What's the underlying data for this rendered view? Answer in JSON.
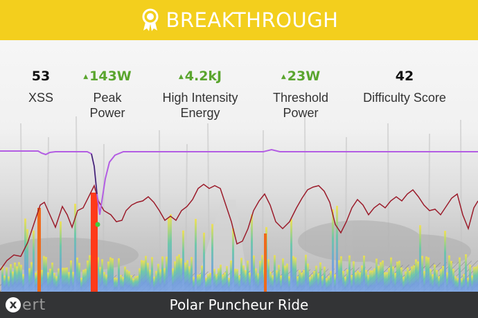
{
  "banner": {
    "title": "BREAKTHROUGH",
    "icon": "medal-icon",
    "background": "#f3cf1d"
  },
  "stats": [
    {
      "value": "53",
      "label_line1": "XSS",
      "label_line2": "",
      "trend": "none"
    },
    {
      "value": "143W",
      "label_line1": "Peak",
      "label_line2": "Power",
      "trend": "up"
    },
    {
      "value": "4.2kJ",
      "label_line1": "High Intensity",
      "label_line2": "Energy",
      "trend": "up"
    },
    {
      "value": "23W",
      "label_line1": "Threshold",
      "label_line2": "Power",
      "trend": "up"
    },
    {
      "value": "42",
      "label_line1": "Difficulty Score",
      "label_line2": "",
      "trend": "none"
    }
  ],
  "colors": {
    "trend_up": "#5aa52e",
    "hr_line": "#9b1b2a",
    "mpa_line": "#b35de3",
    "breakthrough_bar": "#ff3a1a"
  },
  "footer": {
    "logo_mark": "x",
    "logo_text": "ert",
    "ride_title": "Polar Puncheur Ride"
  }
}
